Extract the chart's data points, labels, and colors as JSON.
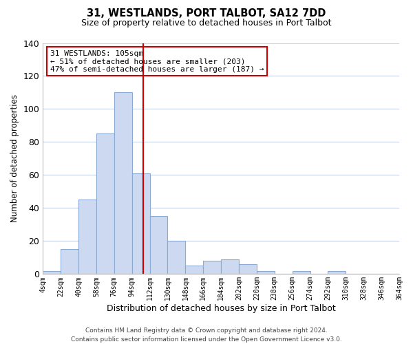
{
  "title": "31, WESTLANDS, PORT TALBOT, SA12 7DD",
  "subtitle": "Size of property relative to detached houses in Port Talbot",
  "xlabel": "Distribution of detached houses by size in Port Talbot",
  "ylabel": "Number of detached properties",
  "bar_values": [
    2,
    15,
    45,
    85,
    110,
    61,
    35,
    20,
    5,
    8,
    9,
    6,
    2,
    0,
    2,
    0,
    2,
    0,
    0,
    0
  ],
  "bin_edges": [
    4,
    22,
    40,
    58,
    76,
    94,
    112,
    130,
    148,
    166,
    184,
    202,
    220,
    238,
    256,
    274,
    292,
    310,
    328,
    346,
    364
  ],
  "tick_labels": [
    "4sqm",
    "22sqm",
    "40sqm",
    "58sqm",
    "76sqm",
    "94sqm",
    "112sqm",
    "130sqm",
    "148sqm",
    "166sqm",
    "184sqm",
    "202sqm",
    "220sqm",
    "238sqm",
    "256sqm",
    "274sqm",
    "292sqm",
    "310sqm",
    "328sqm",
    "346sqm",
    "364sqm"
  ],
  "bar_color": "#ccd9f0",
  "bar_edge_color": "#8aaad4",
  "vline_x": 105,
  "vline_color": "#cc0000",
  "ylim": [
    0,
    140
  ],
  "yticks": [
    0,
    20,
    40,
    60,
    80,
    100,
    120,
    140
  ],
  "annotation_text": "31 WESTLANDS: 105sqm\n← 51% of detached houses are smaller (203)\n47% of semi-detached houses are larger (187) →",
  "annotation_box_facecolor": "#ffffff",
  "annotation_box_edgecolor": "#cc0000",
  "footer1": "Contains HM Land Registry data © Crown copyright and database right 2024.",
  "footer2": "Contains public sector information licensed under the Open Government Licence v3.0.",
  "background_color": "#ffffff",
  "grid_color": "#c8d4e8",
  "title_fontsize": 10.5,
  "subtitle_fontsize": 9,
  "ylabel_fontsize": 8.5,
  "xlabel_fontsize": 9,
  "tick_fontsize": 7,
  "footer_fontsize": 6.5,
  "annotation_fontsize": 8
}
